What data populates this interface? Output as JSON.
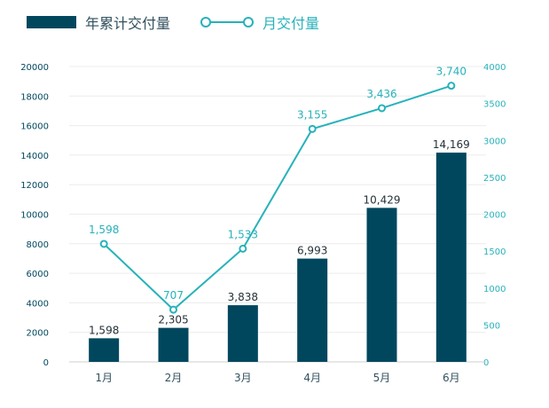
{
  "chart_data": {
    "type": "bar",
    "categories": [
      "1月",
      "2月",
      "3月",
      "4月",
      "5月",
      "6月"
    ],
    "series": [
      {
        "name": "年累计交付量",
        "type": "bar",
        "axis": "left",
        "values": [
          1598,
          2305,
          3838,
          6993,
          10429,
          14169
        ],
        "labels": [
          "1,598",
          "2,305",
          "3,838",
          "6,993",
          "10,429",
          "14,169"
        ],
        "color": "#00475e"
      },
      {
        "name": "月交付量",
        "type": "line",
        "axis": "right",
        "values": [
          1598,
          707,
          1533,
          3155,
          3436,
          3740
        ],
        "labels": [
          "1,598",
          "707",
          "1,533",
          "3,155",
          "3,436",
          "3,740"
        ],
        "color": "#27b2ba"
      }
    ],
    "y_left": {
      "range": [
        0,
        20000
      ],
      "ticks": [
        "0",
        "2000",
        "4000",
        "6000",
        "8000",
        "10000",
        "12000",
        "14000",
        "16000",
        "18000",
        "20000"
      ]
    },
    "y_right": {
      "range": [
        0,
        4000
      ],
      "ticks": [
        "0",
        "500",
        "1000",
        "1500",
        "2000",
        "2500",
        "3000",
        "3500",
        "4000"
      ]
    },
    "grid": true,
    "legend_position": "top-left",
    "colors": {
      "bar": "#00475e",
      "line": "#27b2ba",
      "axis_left_text": "#00475e",
      "axis_right_text": "#27b2ba",
      "grid": "#ececec"
    }
  }
}
